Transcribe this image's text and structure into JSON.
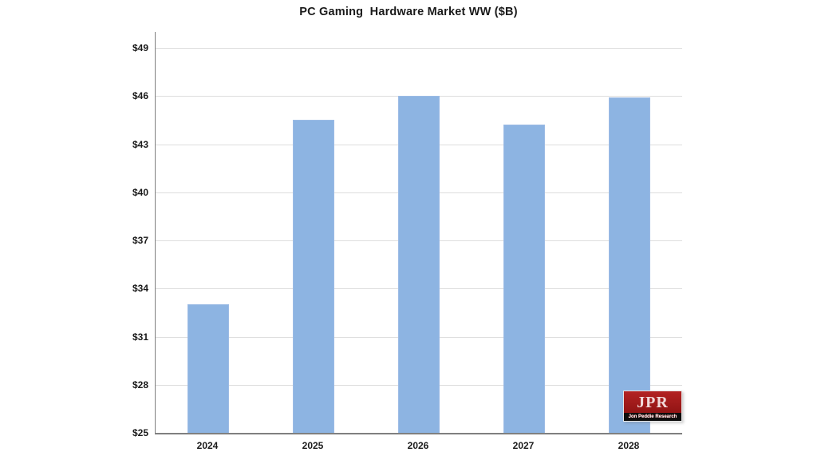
{
  "chart_data": {
    "type": "bar",
    "title": "PC Gaming  Hardware Market WW ($B)",
    "categories": [
      "2024",
      "2025",
      "2026",
      "2027",
      "2028"
    ],
    "values": [
      33.0,
      44.5,
      46.0,
      44.2,
      45.9
    ],
    "xlabel": "",
    "ylabel": "",
    "ylim": [
      25,
      50
    ],
    "ytick_step": 3,
    "ytick_labels": [
      "$25",
      "$28",
      "$31",
      "$34",
      "$37",
      "$40",
      "$43",
      "$46",
      "$49"
    ],
    "grid": true,
    "legend": false,
    "colors": {
      "bar_fill": "#8DB4E2",
      "bar_border": "#9cbbe5",
      "gridline": "#dedede",
      "axis": "#808080",
      "text": "#1a1a1a"
    }
  },
  "logo": {
    "text": "JPR",
    "subtext": "Jon Peddie Research",
    "box_color": "#A01B1B",
    "strip_color": "#0d0d0d"
  }
}
